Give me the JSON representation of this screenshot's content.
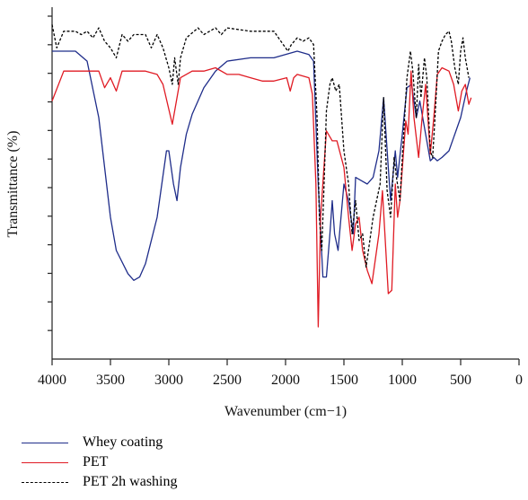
{
  "chart_data": {
    "type": "line",
    "title": "",
    "xlabel": "Wavenumber (cm−1)",
    "ylabel": "Transmittance (%)",
    "xlim": [
      4000,
      0
    ],
    "x_ticks": [
      4000,
      3500,
      3000,
      2500,
      2000,
      1500,
      1000,
      500,
      0
    ],
    "x_tick_labels": [
      "4000",
      "3500",
      "3000",
      "2500",
      "2000",
      "1500",
      "1000",
      "500",
      "0"
    ],
    "ylim": [
      0,
      100
    ],
    "y_ticks_labeled": false,
    "y_tick_count": 12,
    "grid": false,
    "legend_position": "bottom-left",
    "series": [
      {
        "name": "Whey coating",
        "color": "#1f2d8a",
        "dash": "solid",
        "points": [
          [
            4000,
            90
          ],
          [
            3800,
            90
          ],
          [
            3700,
            87
          ],
          [
            3600,
            70
          ],
          [
            3500,
            40
          ],
          [
            3450,
            30
          ],
          [
            3350,
            23
          ],
          [
            3300,
            21
          ],
          [
            3250,
            22
          ],
          [
            3200,
            26
          ],
          [
            3100,
            40
          ],
          [
            3020,
            60
          ],
          [
            3000,
            60
          ],
          [
            2960,
            50
          ],
          [
            2930,
            45
          ],
          [
            2900,
            55
          ],
          [
            2850,
            65
          ],
          [
            2800,
            71
          ],
          [
            2700,
            79
          ],
          [
            2600,
            84
          ],
          [
            2500,
            87
          ],
          [
            2300,
            88
          ],
          [
            2100,
            88
          ],
          [
            1900,
            90
          ],
          [
            1800,
            89
          ],
          [
            1760,
            87
          ],
          [
            1720,
            50
          ],
          [
            1680,
            22
          ],
          [
            1650,
            22
          ],
          [
            1620,
            35
          ],
          [
            1600,
            45
          ],
          [
            1580,
            35
          ],
          [
            1550,
            30
          ],
          [
            1500,
            50
          ],
          [
            1460,
            45
          ],
          [
            1420,
            35
          ],
          [
            1400,
            52
          ],
          [
            1350,
            51
          ],
          [
            1300,
            50
          ],
          [
            1250,
            52
          ],
          [
            1200,
            60
          ],
          [
            1160,
            76
          ],
          [
            1120,
            55
          ],
          [
            1100,
            45
          ],
          [
            1060,
            60
          ],
          [
            1040,
            52
          ],
          [
            1000,
            65
          ],
          [
            960,
            79
          ],
          [
            920,
            80
          ],
          [
            880,
            70
          ],
          [
            850,
            75
          ],
          [
            800,
            65
          ],
          [
            760,
            57
          ],
          [
            730,
            58
          ],
          [
            700,
            57
          ],
          [
            660,
            58
          ],
          [
            600,
            60
          ],
          [
            560,
            64
          ],
          [
            500,
            70
          ],
          [
            450,
            78
          ],
          [
            420,
            82
          ]
        ]
      },
      {
        "name": "PET",
        "color": "#e01b24",
        "dash": "solid",
        "points": [
          [
            4000,
            75
          ],
          [
            3900,
            84
          ],
          [
            3700,
            84
          ],
          [
            3600,
            84
          ],
          [
            3550,
            79
          ],
          [
            3500,
            82
          ],
          [
            3450,
            78
          ],
          [
            3400,
            84
          ],
          [
            3200,
            84
          ],
          [
            3100,
            83
          ],
          [
            3050,
            80
          ],
          [
            2970,
            68
          ],
          [
            2950,
            72
          ],
          [
            2900,
            82
          ],
          [
            2800,
            84
          ],
          [
            2700,
            84
          ],
          [
            2600,
            85
          ],
          [
            2500,
            83
          ],
          [
            2400,
            83
          ],
          [
            2300,
            82
          ],
          [
            2200,
            81
          ],
          [
            2100,
            81
          ],
          [
            1990,
            82
          ],
          [
            1960,
            78
          ],
          [
            1930,
            82
          ],
          [
            1900,
            83
          ],
          [
            1800,
            82
          ],
          [
            1770,
            77
          ],
          [
            1740,
            50
          ],
          [
            1720,
            7
          ],
          [
            1700,
            40
          ],
          [
            1650,
            66
          ],
          [
            1600,
            63
          ],
          [
            1560,
            63
          ],
          [
            1500,
            55
          ],
          [
            1460,
            40
          ],
          [
            1430,
            30
          ],
          [
            1400,
            38
          ],
          [
            1370,
            40
          ],
          [
            1340,
            30
          ],
          [
            1300,
            24
          ],
          [
            1260,
            20
          ],
          [
            1240,
            25
          ],
          [
            1200,
            35
          ],
          [
            1170,
            48
          ],
          [
            1120,
            17
          ],
          [
            1090,
            18
          ],
          [
            1060,
            50
          ],
          [
            1040,
            40
          ],
          [
            1020,
            45
          ],
          [
            970,
            69
          ],
          [
            950,
            65
          ],
          [
            925,
            84
          ],
          [
            900,
            70
          ],
          [
            860,
            58
          ],
          [
            830,
            70
          ],
          [
            800,
            80
          ],
          [
            760,
            59
          ],
          [
            730,
            70
          ],
          [
            700,
            83
          ],
          [
            660,
            85
          ],
          [
            600,
            84
          ],
          [
            560,
            80
          ],
          [
            520,
            72
          ],
          [
            490,
            78
          ],
          [
            460,
            80
          ],
          [
            430,
            74
          ],
          [
            410,
            76
          ]
        ]
      },
      {
        "name": "PET 2h washing",
        "color": "#000000",
        "dash": "dashed",
        "points": [
          [
            4000,
            98
          ],
          [
            3960,
            91
          ],
          [
            3900,
            96
          ],
          [
            3800,
            96
          ],
          [
            3750,
            95
          ],
          [
            3700,
            96
          ],
          [
            3650,
            94
          ],
          [
            3600,
            97
          ],
          [
            3550,
            93
          ],
          [
            3500,
            91
          ],
          [
            3450,
            88
          ],
          [
            3400,
            95
          ],
          [
            3350,
            93
          ],
          [
            3300,
            95
          ],
          [
            3200,
            95
          ],
          [
            3150,
            91
          ],
          [
            3100,
            95
          ],
          [
            3050,
            91
          ],
          [
            3000,
            85
          ],
          [
            2970,
            80
          ],
          [
            2950,
            88
          ],
          [
            2920,
            80
          ],
          [
            2900,
            88
          ],
          [
            2850,
            94
          ],
          [
            2750,
            97
          ],
          [
            2700,
            95
          ],
          [
            2650,
            96
          ],
          [
            2600,
            97
          ],
          [
            2550,
            95
          ],
          [
            2500,
            97
          ],
          [
            2300,
            96
          ],
          [
            2100,
            96
          ],
          [
            1980,
            90
          ],
          [
            1950,
            92
          ],
          [
            1900,
            94
          ],
          [
            1850,
            93
          ],
          [
            1800,
            94
          ],
          [
            1760,
            92
          ],
          [
            1730,
            70
          ],
          [
            1710,
            40
          ],
          [
            1690,
            30
          ],
          [
            1670,
            50
          ],
          [
            1650,
            72
          ],
          [
            1620,
            80
          ],
          [
            1600,
            82
          ],
          [
            1570,
            78
          ],
          [
            1540,
            80
          ],
          [
            1500,
            60
          ],
          [
            1460,
            50
          ],
          [
            1430,
            35
          ],
          [
            1400,
            45
          ],
          [
            1370,
            33
          ],
          [
            1340,
            35
          ],
          [
            1310,
            25
          ],
          [
            1290,
            30
          ],
          [
            1250,
            40
          ],
          [
            1220,
            45
          ],
          [
            1190,
            50
          ],
          [
            1160,
            76
          ],
          [
            1130,
            48
          ],
          [
            1100,
            40
          ],
          [
            1070,
            58
          ],
          [
            1050,
            52
          ],
          [
            1020,
            45
          ],
          [
            990,
            64
          ],
          [
            960,
            82
          ],
          [
            930,
            90
          ],
          [
            910,
            84
          ],
          [
            880,
            70
          ],
          [
            860,
            86
          ],
          [
            840,
            76
          ],
          [
            810,
            88
          ],
          [
            790,
            82
          ],
          [
            760,
            60
          ],
          [
            740,
            58
          ],
          [
            720,
            70
          ],
          [
            690,
            90
          ],
          [
            660,
            93
          ],
          [
            630,
            95
          ],
          [
            600,
            96
          ],
          [
            580,
            93
          ],
          [
            550,
            85
          ],
          [
            520,
            80
          ],
          [
            500,
            90
          ],
          [
            480,
            94
          ],
          [
            460,
            88
          ],
          [
            430,
            82
          ]
        ]
      }
    ]
  }
}
